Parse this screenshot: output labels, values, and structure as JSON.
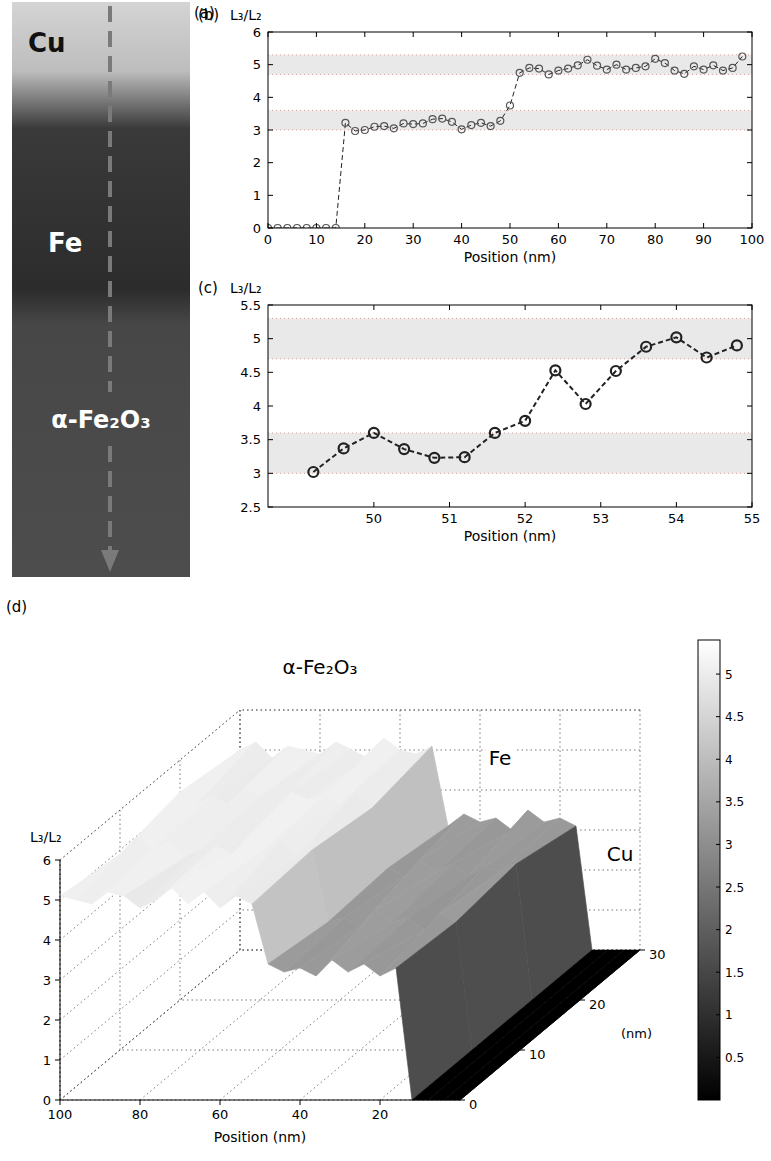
{
  "image_panel": {
    "label": "(a)",
    "regions": [
      "Cu",
      "Fe",
      "α-Fe₂O₃"
    ]
  },
  "chart_data": [
    {
      "type": "line",
      "panel": "(b)",
      "ylabel": "L₃/L₂",
      "xlabel": "Position (nm)",
      "x": [
        0,
        2,
        4,
        6,
        8,
        10,
        12,
        14,
        16,
        18,
        20,
        22,
        24,
        26,
        28,
        30,
        32,
        34,
        36,
        38,
        40,
        42,
        44,
        46,
        48,
        50,
        52,
        54,
        56,
        58,
        60,
        62,
        64,
        66,
        68,
        70,
        72,
        74,
        76,
        78,
        80,
        82,
        84,
        86,
        88,
        90,
        92,
        94,
        96,
        98
      ],
      "values": [
        0,
        0,
        0,
        0,
        0,
        0,
        0,
        0,
        3.22,
        2.97,
        3,
        3.1,
        3.12,
        3.05,
        3.2,
        3.18,
        3.2,
        3.33,
        3.35,
        3.25,
        3.02,
        3.15,
        3.22,
        3.12,
        3.28,
        3.75,
        4.75,
        4.9,
        4.88,
        4.7,
        4.82,
        4.88,
        4.98,
        5.15,
        4.97,
        4.85,
        5,
        4.85,
        4.9,
        4.95,
        5.18,
        5.05,
        4.82,
        4.72,
        4.95,
        4.85,
        4.98,
        4.82,
        4.9,
        5.25
      ],
      "xlim": [
        0,
        100
      ],
      "xticks": [
        0,
        10,
        20,
        30,
        40,
        50,
        60,
        70,
        80,
        90,
        100
      ],
      "ylim": [
        0,
        6
      ],
      "yticks": [
        0,
        1,
        2,
        3,
        4,
        5,
        6
      ],
      "bands": [
        [
          3,
          3.6
        ],
        [
          4.7,
          5.3
        ]
      ],
      "marker": "circle",
      "line_style": "dashed",
      "color": "#555555"
    },
    {
      "type": "line",
      "panel": "(c)",
      "ylabel": "L₃/L₂",
      "xlabel": "Position (nm)",
      "x": [
        49.2,
        49.6,
        50,
        50.4,
        50.8,
        51.2,
        51.6,
        52,
        52.4,
        52.8,
        53.2,
        53.6,
        54,
        54.4,
        54.8
      ],
      "values": [
        3.02,
        3.37,
        3.6,
        3.36,
        3.23,
        3.24,
        3.6,
        3.78,
        4.53,
        4.03,
        4.52,
        4.88,
        5.02,
        4.72,
        4.9
      ],
      "xlim": [
        48.6,
        55
      ],
      "xticks": [
        50,
        51,
        52,
        53,
        54,
        55
      ],
      "ylim": [
        2.5,
        5.5
      ],
      "yticks": [
        2.5,
        3,
        3.5,
        4,
        4.5,
        5,
        5.5
      ],
      "bands": [
        [
          3,
          3.6
        ],
        [
          4.7,
          5.3
        ]
      ],
      "marker": "circle",
      "line_style": "dashed",
      "color": "#222222"
    },
    {
      "type": "surface",
      "panel": "(d)",
      "zlabel": "L₃/L₂",
      "xlabel": "Position (nm)",
      "ylabel": "(nm)",
      "annotations": [
        "α-Fe₂O₃",
        "Fe",
        "Cu"
      ],
      "x": [
        0,
        4,
        8,
        12,
        16,
        20,
        24,
        28,
        32,
        36,
        40,
        44,
        48,
        52,
        56,
        60,
        64,
        68,
        72,
        76,
        80,
        84,
        88,
        92,
        96,
        100
      ],
      "y": [
        0,
        10,
        20,
        30
      ],
      "z": [
        [
          0,
          0,
          0,
          0,
          3.3,
          3.1,
          3.4,
          3.2,
          3.5,
          3.1,
          3.3,
          3.2,
          3.4,
          4.9,
          5.1,
          4.8,
          5.2,
          4.9,
          5.3,
          5,
          4.8,
          5.1,
          5.2,
          4.9,
          5,
          5.1
        ],
        [
          0,
          0,
          0,
          0,
          3.2,
          3.4,
          3,
          3.3,
          3.2,
          3.5,
          3.1,
          3.3,
          3.2,
          5,
          4.8,
          5.2,
          5,
          5.3,
          4.9,
          5.1,
          5,
          4.8,
          5.2,
          5,
          5.3,
          4.9
        ],
        [
          0,
          0,
          0,
          0,
          3.4,
          3.2,
          3.3,
          3.1,
          3.4,
          3.2,
          3.5,
          3.1,
          3.3,
          4.8,
          5.2,
          4.9,
          5.1,
          5,
          5.2,
          4.8,
          5.1,
          5.3,
          4.9,
          5.1,
          4.9,
          5.2
        ],
        [
          0,
          0,
          0,
          0,
          3.1,
          3.3,
          3.2,
          3.5,
          3,
          3.3,
          3.2,
          3.4,
          3.1,
          5.1,
          4.9,
          5,
          5.3,
          4.8,
          5,
          5.2,
          4.9,
          5,
          5.1,
          4.8,
          5.2,
          5
        ]
      ],
      "xlim": [
        0,
        100
      ],
      "xticks": [
        20,
        40,
        60,
        80,
        100
      ],
      "ylim": [
        0,
        30
      ],
      "yticks": [
        0,
        10,
        20,
        30
      ],
      "zlim": [
        0,
        6
      ],
      "zticks": [
        0,
        1,
        2,
        3,
        4,
        5,
        6
      ],
      "colorbar": {
        "range": [
          0,
          5.4
        ],
        "ticks": [
          0.5,
          1,
          1.5,
          2,
          2.5,
          3,
          3.5,
          4,
          4.5,
          5
        ]
      }
    }
  ]
}
